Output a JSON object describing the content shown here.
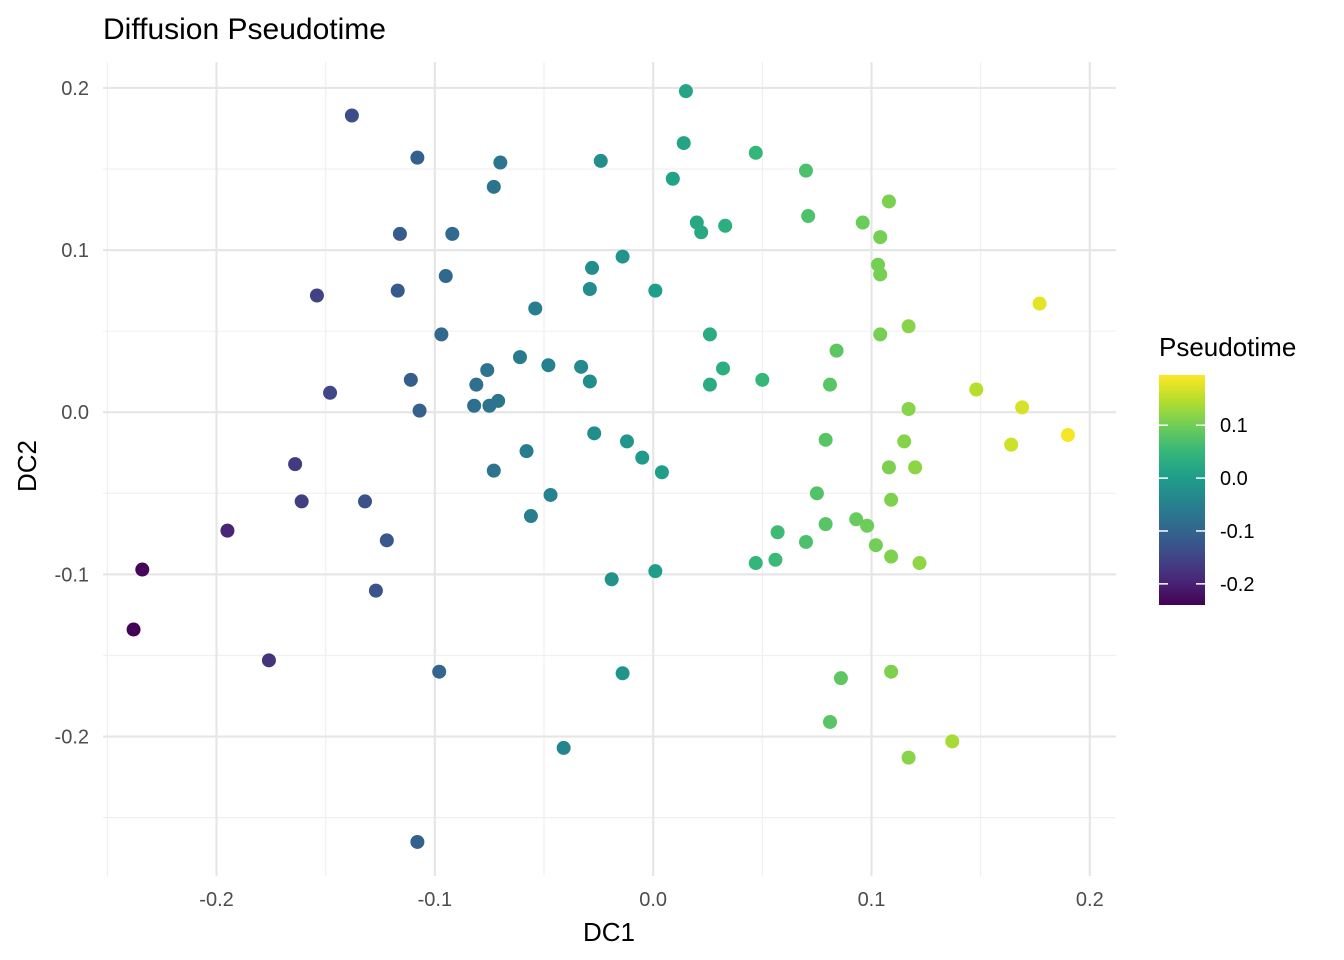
{
  "chart_data": {
    "type": "scatter",
    "title": "Diffusion Pseudotime",
    "xlabel": "DC1",
    "ylabel": "DC2",
    "xlim": [
      -0.252,
      0.212
    ],
    "ylim": [
      -0.286,
      0.216
    ],
    "x_ticks": [
      -0.2,
      -0.1,
      0.0,
      0.1,
      0.2
    ],
    "x_tick_labels": [
      "-0.2",
      "-0.1",
      "0.0",
      "0.1",
      "0.2"
    ],
    "y_ticks": [
      -0.2,
      -0.1,
      0.0,
      0.1,
      0.2
    ],
    "y_tick_labels": [
      "-0.2",
      "-0.1",
      "0.0",
      "0.1",
      "0.2"
    ],
    "grid": true,
    "color_scale": {
      "title": "Pseudotime",
      "palette": "viridis",
      "colors": [
        "#440154",
        "#482878",
        "#3E4A89",
        "#31688E",
        "#26828E",
        "#1F9E89",
        "#35B779",
        "#6DCD59",
        "#B4DE2C",
        "#FDE725"
      ],
      "range": [
        -0.24,
        0.195
      ],
      "ticks": [
        0.1,
        0.0,
        -0.1,
        -0.2
      ],
      "tick_labels": [
        "0.1",
        "0.0",
        "-0.1",
        "-0.2"
      ],
      "position": "right"
    },
    "color_variable": "pseudotime (equals DC1)",
    "points": [
      {
        "x": 0.015,
        "y": 0.198
      },
      {
        "x": -0.138,
        "y": 0.183
      },
      {
        "x": 0.014,
        "y": 0.166
      },
      {
        "x": 0.047,
        "y": 0.16
      },
      {
        "x": -0.108,
        "y": 0.157
      },
      {
        "x": -0.024,
        "y": 0.155
      },
      {
        "x": -0.07,
        "y": 0.154
      },
      {
        "x": 0.07,
        "y": 0.149
      },
      {
        "x": 0.009,
        "y": 0.144
      },
      {
        "x": -0.073,
        "y": 0.139
      },
      {
        "x": 0.108,
        "y": 0.13
      },
      {
        "x": 0.071,
        "y": 0.121
      },
      {
        "x": 0.096,
        "y": 0.117
      },
      {
        "x": 0.02,
        "y": 0.117
      },
      {
        "x": 0.033,
        "y": 0.115
      },
      {
        "x": 0.022,
        "y": 0.111
      },
      {
        "x": -0.116,
        "y": 0.11
      },
      {
        "x": -0.092,
        "y": 0.11
      },
      {
        "x": 0.104,
        "y": 0.108
      },
      {
        "x": -0.014,
        "y": 0.096
      },
      {
        "x": 0.103,
        "y": 0.091
      },
      {
        "x": -0.028,
        "y": 0.089
      },
      {
        "x": 0.104,
        "y": 0.085
      },
      {
        "x": -0.095,
        "y": 0.084
      },
      {
        "x": -0.029,
        "y": 0.076
      },
      {
        "x": 0.001,
        "y": 0.075
      },
      {
        "x": -0.117,
        "y": 0.075
      },
      {
        "x": -0.154,
        "y": 0.072
      },
      {
        "x": 0.177,
        "y": 0.067
      },
      {
        "x": -0.054,
        "y": 0.064
      },
      {
        "x": 0.117,
        "y": 0.053
      },
      {
        "x": -0.097,
        "y": 0.048
      },
      {
        "x": 0.026,
        "y": 0.048
      },
      {
        "x": 0.104,
        "y": 0.048
      },
      {
        "x": 0.084,
        "y": 0.038
      },
      {
        "x": -0.061,
        "y": 0.034
      },
      {
        "x": -0.048,
        "y": 0.029
      },
      {
        "x": -0.033,
        "y": 0.028
      },
      {
        "x": 0.032,
        "y": 0.027
      },
      {
        "x": -0.076,
        "y": 0.026
      },
      {
        "x": -0.111,
        "y": 0.02
      },
      {
        "x": 0.05,
        "y": 0.02
      },
      {
        "x": -0.029,
        "y": 0.019
      },
      {
        "x": 0.026,
        "y": 0.017
      },
      {
        "x": -0.081,
        "y": 0.017
      },
      {
        "x": 0.081,
        "y": 0.017
      },
      {
        "x": 0.148,
        "y": 0.014
      },
      {
        "x": -0.148,
        "y": 0.012
      },
      {
        "x": -0.071,
        "y": 0.007
      },
      {
        "x": -0.082,
        "y": 0.004
      },
      {
        "x": -0.075,
        "y": 0.004
      },
      {
        "x": 0.169,
        "y": 0.003
      },
      {
        "x": 0.117,
        "y": 0.002
      },
      {
        "x": -0.107,
        "y": 0.001
      },
      {
        "x": 0.19,
        "y": -0.014
      },
      {
        "x": -0.027,
        "y": -0.013
      },
      {
        "x": 0.079,
        "y": -0.017
      },
      {
        "x": 0.115,
        "y": -0.018
      },
      {
        "x": -0.012,
        "y": -0.018
      },
      {
        "x": 0.164,
        "y": -0.02
      },
      {
        "x": -0.058,
        "y": -0.024
      },
      {
        "x": -0.005,
        "y": -0.028
      },
      {
        "x": -0.164,
        "y": -0.032
      },
      {
        "x": 0.108,
        "y": -0.034
      },
      {
        "x": 0.12,
        "y": -0.034
      },
      {
        "x": -0.073,
        "y": -0.036
      },
      {
        "x": 0.004,
        "y": -0.037
      },
      {
        "x": 0.075,
        "y": -0.05
      },
      {
        "x": -0.047,
        "y": -0.051
      },
      {
        "x": 0.109,
        "y": -0.054
      },
      {
        "x": -0.132,
        "y": -0.055
      },
      {
        "x": -0.161,
        "y": -0.055
      },
      {
        "x": -0.056,
        "y": -0.064
      },
      {
        "x": 0.093,
        "y": -0.066
      },
      {
        "x": 0.079,
        "y": -0.069
      },
      {
        "x": 0.098,
        "y": -0.07
      },
      {
        "x": -0.195,
        "y": -0.073
      },
      {
        "x": 0.057,
        "y": -0.074
      },
      {
        "x": -0.122,
        "y": -0.079
      },
      {
        "x": 0.07,
        "y": -0.08
      },
      {
        "x": 0.102,
        "y": -0.082
      },
      {
        "x": 0.109,
        "y": -0.089
      },
      {
        "x": 0.056,
        "y": -0.091
      },
      {
        "x": 0.047,
        "y": -0.093
      },
      {
        "x": 0.122,
        "y": -0.093
      },
      {
        "x": -0.234,
        "y": -0.097
      },
      {
        "x": 0.001,
        "y": -0.098
      },
      {
        "x": -0.019,
        "y": -0.103
      },
      {
        "x": -0.127,
        "y": -0.11
      },
      {
        "x": -0.238,
        "y": -0.134
      },
      {
        "x": -0.176,
        "y": -0.153
      },
      {
        "x": -0.098,
        "y": -0.16
      },
      {
        "x": 0.109,
        "y": -0.16
      },
      {
        "x": -0.014,
        "y": -0.161
      },
      {
        "x": 0.086,
        "y": -0.164
      },
      {
        "x": 0.081,
        "y": -0.191
      },
      {
        "x": 0.137,
        "y": -0.203
      },
      {
        "x": -0.041,
        "y": -0.207
      },
      {
        "x": 0.117,
        "y": -0.213
      },
      {
        "x": -0.108,
        "y": -0.265
      }
    ]
  }
}
